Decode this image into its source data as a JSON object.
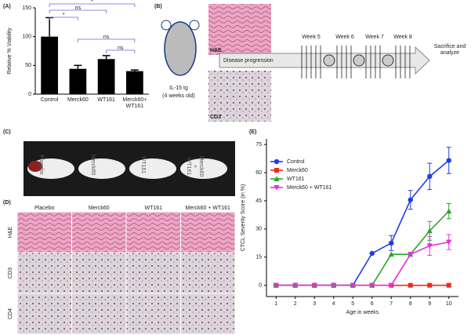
{
  "chart_data": [
    {
      "type": "bar",
      "label": "(A)",
      "y_label": "Relative % Viability",
      "categories": [
        "Control",
        "Merck60",
        "WT161",
        "Merck60+\nWT161"
      ],
      "values": [
        100,
        44,
        61,
        40
      ],
      "errors": [
        33,
        6,
        6,
        2
      ],
      "color": "#000000",
      "bracket_color": "#6a6ad8",
      "ylim": [
        0,
        150
      ],
      "yticks": [
        0,
        50,
        100,
        150
      ],
      "annotations": [
        "*",
        "ns",
        "*",
        "ns",
        "ns"
      ]
    },
    {
      "type": "line",
      "label": "(E)",
      "y_label": "CTCL Severity Score (in %)",
      "x_label": "Age in weeks",
      "x": [
        1,
        2,
        3,
        4,
        5,
        6,
        7,
        8,
        9,
        10
      ],
      "xlim": [
        0.5,
        10.5
      ],
      "xticks": [
        1,
        2,
        3,
        4,
        5,
        6,
        7,
        8,
        9,
        10
      ],
      "ylim": [
        -6,
        78
      ],
      "yticks": [
        0,
        15,
        30,
        45,
        60,
        75
      ],
      "legend": "upper left",
      "series": [
        {
          "name": "Control",
          "color": "#1f3fe0",
          "marker": "circle",
          "values": [
            0,
            0,
            0,
            0,
            0,
            17,
            22.5,
            45.5,
            58,
            66.5
          ],
          "errors": [
            null,
            null,
            null,
            null,
            null,
            null,
            4,
            5,
            7,
            7
          ]
        },
        {
          "name": "Merck60",
          "color": "#f0281e",
          "marker": "square",
          "values": [
            0,
            0,
            0,
            0,
            0,
            0,
            0,
            0,
            0,
            0
          ],
          "errors": [
            null,
            null,
            null,
            null,
            null,
            null,
            null,
            null,
            null,
            null
          ]
        },
        {
          "name": "WT161",
          "color": "#2aa52a",
          "marker": "triangle",
          "values": [
            0,
            0,
            0,
            0,
            0,
            0,
            16.5,
            16.5,
            29,
            39.5
          ],
          "errors": [
            null,
            null,
            null,
            null,
            null,
            null,
            null,
            null,
            5,
            4
          ]
        },
        {
          "name": "Merck60 + WT161",
          "color": "#e030e0",
          "marker": "triangle-down",
          "values": [
            0,
            0,
            0,
            0,
            0,
            0,
            0,
            16.5,
            21,
            23
          ],
          "errors": [
            null,
            null,
            null,
            null,
            null,
            null,
            null,
            null,
            5,
            4
          ]
        }
      ]
    }
  ],
  "panel_b": {
    "label": "(B)",
    "mouse_label": "IL-15 tg",
    "mouse_age": "(4 weeks old)",
    "stain_1": "H&E",
    "stain_2": "CD3",
    "arrow_label": "Disease progression",
    "weeks": [
      "Week 5",
      "Week 6",
      "Week 7",
      "Week 8"
    ],
    "endpoint": "Sacrifice and\nanalyze"
  },
  "panel_c": {
    "label": "(C)",
    "groups": [
      "Placebo",
      "Merck60",
      "WT161",
      "Merck60\n+\nWT161"
    ]
  },
  "panel_d": {
    "label": "(D)",
    "columns": [
      "Placebo",
      "Merck60",
      "WT161",
      "Merck60 + WT161"
    ],
    "rows": [
      "H&E",
      "CD3",
      "CD4"
    ]
  }
}
